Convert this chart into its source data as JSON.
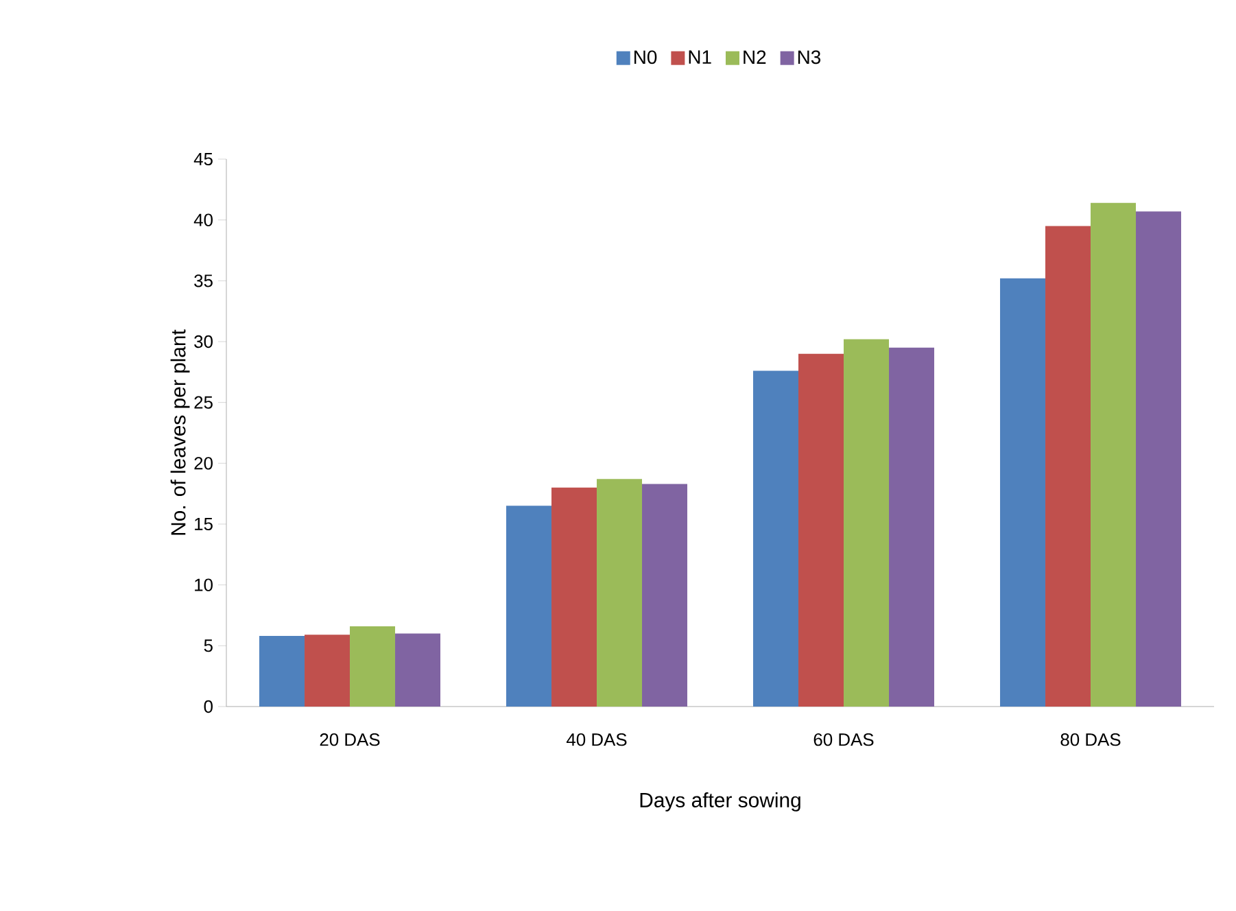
{
  "chart_data": {
    "type": "bar",
    "xlabel": "Days after sowing",
    "ylabel": "No. of leaves  per plant",
    "categories": [
      "20 DAS",
      "40 DAS",
      "60  DAS",
      "80 DAS"
    ],
    "series": [
      {
        "name": "N0",
        "color": "#4f81bd",
        "values": [
          5.8,
          16.5,
          27.6,
          35.2
        ]
      },
      {
        "name": "N1",
        "color": "#c0504d",
        "values": [
          5.9,
          18.0,
          29.0,
          39.5
        ]
      },
      {
        "name": "N2",
        "color": "#9bbb59",
        "values": [
          6.6,
          18.7,
          30.2,
          41.4
        ]
      },
      {
        "name": "N3",
        "color": "#8064a2",
        "values": [
          6.0,
          18.3,
          29.5,
          40.7
        ]
      }
    ],
    "ylim": [
      0,
      45
    ],
    "yticks": [
      0,
      5,
      10,
      15,
      20,
      25,
      30,
      35,
      40,
      45
    ],
    "grid": false,
    "legend": "top"
  }
}
